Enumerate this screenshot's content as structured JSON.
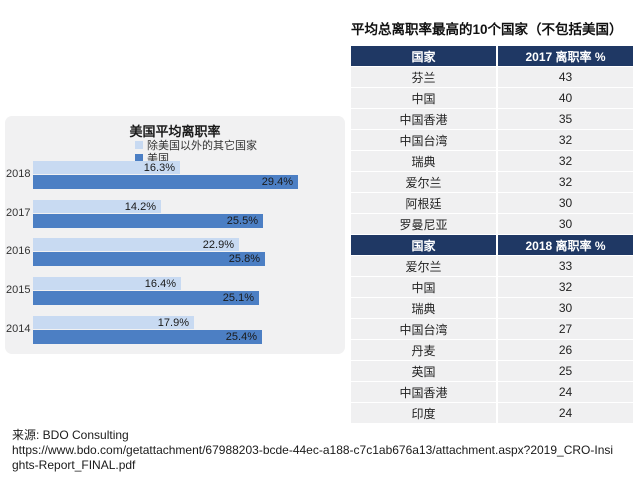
{
  "chart_data": [
    {
      "type": "bar",
      "orientation": "horizontal",
      "title": "美国平均离职率",
      "categories": [
        "2018",
        "2017",
        "2016",
        "2015",
        "2014"
      ],
      "series": [
        {
          "name": "除美国以外的其它国家",
          "values": [
            16.3,
            14.2,
            22.9,
            16.4,
            17.9
          ],
          "color": "#c8daf2"
        },
        {
          "name": "美国",
          "values": [
            29.4,
            25.5,
            25.8,
            25.1,
            25.4
          ],
          "color": "#4c7fc4"
        }
      ],
      "value_suffix": "%",
      "xlim": [
        0,
        30
      ],
      "legend_position": "top",
      "grid": false,
      "panel_background": "#f1f1f2"
    },
    {
      "type": "table",
      "title": "平均总离职率最高的10个国家（不包括美国）",
      "columns": [
        "国家",
        "2017 离职率 %"
      ],
      "rows": [
        [
          "芬兰",
          "43"
        ],
        [
          "中国",
          "40"
        ],
        [
          "中国香港",
          "35"
        ],
        [
          "中国台湾",
          "32"
        ],
        [
          "瑞典",
          "32"
        ],
        [
          "爱尔兰",
          "32"
        ],
        [
          "阿根廷",
          "30"
        ],
        [
          "罗曼尼亚",
          "30"
        ]
      ]
    },
    {
      "type": "table",
      "title": "",
      "columns": [
        "国家",
        "2018 离职率 %"
      ],
      "rows": [
        [
          "爱尔兰",
          "33"
        ],
        [
          "中国",
          "32"
        ],
        [
          "瑞典",
          "30"
        ],
        [
          "中国台湾",
          "27"
        ],
        [
          "丹麦",
          "26"
        ],
        [
          "英国",
          "25"
        ],
        [
          "中国香港",
          "24"
        ],
        [
          "印度",
          "24"
        ]
      ]
    }
  ],
  "colors": {
    "other_countries_bar": "#c8daf2",
    "us_bar": "#4c7fc4",
    "table_header_bg": "#1f3864",
    "table_row_bg": "#f0f0f1",
    "panel_bg": "#f1f1f2"
  },
  "source": {
    "line1": "来源: BDO Consulting",
    "url": "https://www.bdo.com/getattachment/67988203-bcde-44ec-a188-c7c1ab676a13/attachment.aspx?2019_CRO-Insights-Report_FINAL.pdf"
  }
}
